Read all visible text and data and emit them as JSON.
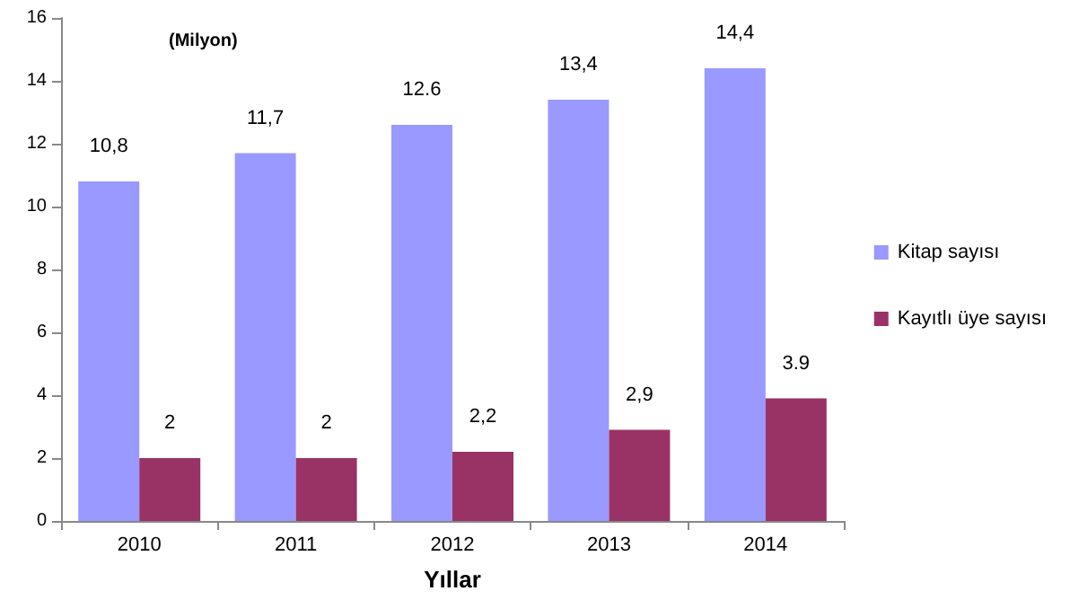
{
  "chart_data": {
    "type": "bar",
    "ylabel": "(Milyon)",
    "xlabel": "Yıllar",
    "categories": [
      "2010",
      "2011",
      "2012",
      "2013",
      "2014"
    ],
    "series": [
      {
        "name": "Kitap sayısı",
        "color": "#9999ff",
        "values": [
          10.8,
          11.7,
          12.6,
          13.4,
          14.4
        ],
        "value_labels": [
          "10,8",
          "11,7",
          "12.6",
          "13,4",
          "14,4"
        ]
      },
      {
        "name": "Kayıtlı üye sayısı",
        "color": "#993366",
        "values": [
          2,
          2,
          2.2,
          2.9,
          3.9
        ],
        "value_labels": [
          "2",
          "2",
          "2,2",
          "2,9",
          "3.9"
        ]
      }
    ],
    "ylim": [
      0,
      16
    ],
    "yticks": [
      0,
      2,
      4,
      6,
      8,
      10,
      12,
      14,
      16
    ],
    "grid": false,
    "legend": "right"
  }
}
